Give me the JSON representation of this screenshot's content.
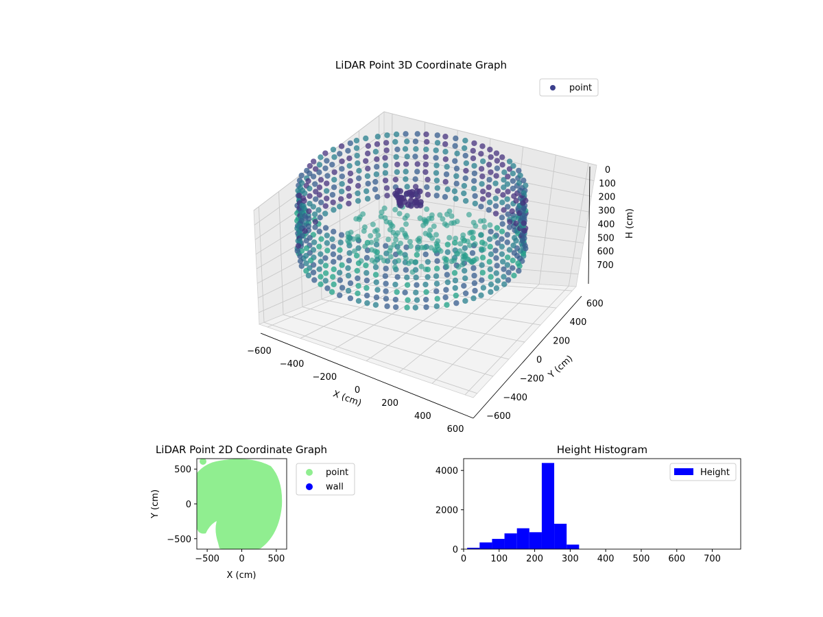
{
  "chart_data": [
    {
      "type": "scatter",
      "subtype": "3d",
      "title": "LiDAR Point 3D Coordinate Graph",
      "xlabel": "X (cm)",
      "ylabel": "Y (cm)",
      "zlabel": "H (cm)",
      "xlim": [
        -650,
        650
      ],
      "ylim": [
        -650,
        650
      ],
      "zlim": [
        780,
        0
      ],
      "x_ticks": [
        -600,
        -400,
        -200,
        0,
        200,
        400,
        600
      ],
      "y_ticks": [
        -600,
        -400,
        -200,
        0,
        200,
        400,
        600
      ],
      "z_ticks": [
        0,
        100,
        200,
        300,
        400,
        500,
        600,
        700
      ],
      "z_inverted": true,
      "colormap": "viridis",
      "grid": true,
      "legend": {
        "position": "upper right",
        "entries": [
          {
            "label": "point",
            "color": "#3b3f8c"
          }
        ]
      },
      "description_of_points": "ring of points around the sensor at radius ~600 cm, heights 0-300 cm"
    },
    {
      "type": "scatter",
      "title": "LiDAR Point 2D Coordinate Graph",
      "xlabel": "X (cm)",
      "ylabel": "Y (cm)",
      "xlim": [
        -650,
        650
      ],
      "ylim": [
        -650,
        650
      ],
      "x_ticks": [
        -500,
        0,
        500
      ],
      "y_ticks": [
        -500,
        0,
        500
      ],
      "series": [
        {
          "name": "point",
          "color": "#90ee90"
        },
        {
          "name": "wall",
          "color": "#0000ff"
        }
      ],
      "legend": {
        "position": "outside right"
      }
    },
    {
      "type": "bar",
      "subtype": "histogram",
      "title": "Height Histogram",
      "xlim": [
        0,
        780
      ],
      "ylim": [
        0,
        4600
      ],
      "x_ticks": [
        0,
        100,
        200,
        300,
        400,
        500,
        600,
        700
      ],
      "y_ticks": [
        0,
        2000,
        4000
      ],
      "bin_width": 35,
      "bin_edges_start": 10,
      "values": [
        70,
        340,
        520,
        800,
        1060,
        860,
        4380,
        1290,
        230
      ],
      "series": [
        {
          "name": "Height",
          "color": "#0000ff"
        }
      ],
      "legend": {
        "position": "upper right"
      }
    }
  ]
}
